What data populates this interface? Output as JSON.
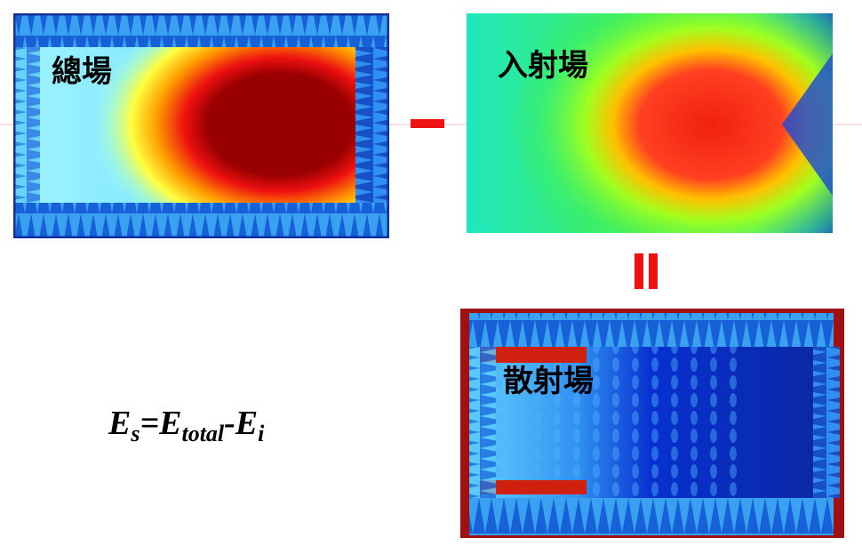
{
  "panels": {
    "total": {
      "label": "總場"
    },
    "incident": {
      "label": "入射場"
    },
    "scattered": {
      "label": "散射場"
    }
  },
  "formula": [
    "E",
    "s",
    "=E",
    "total",
    "-E",
    "i"
  ]
}
